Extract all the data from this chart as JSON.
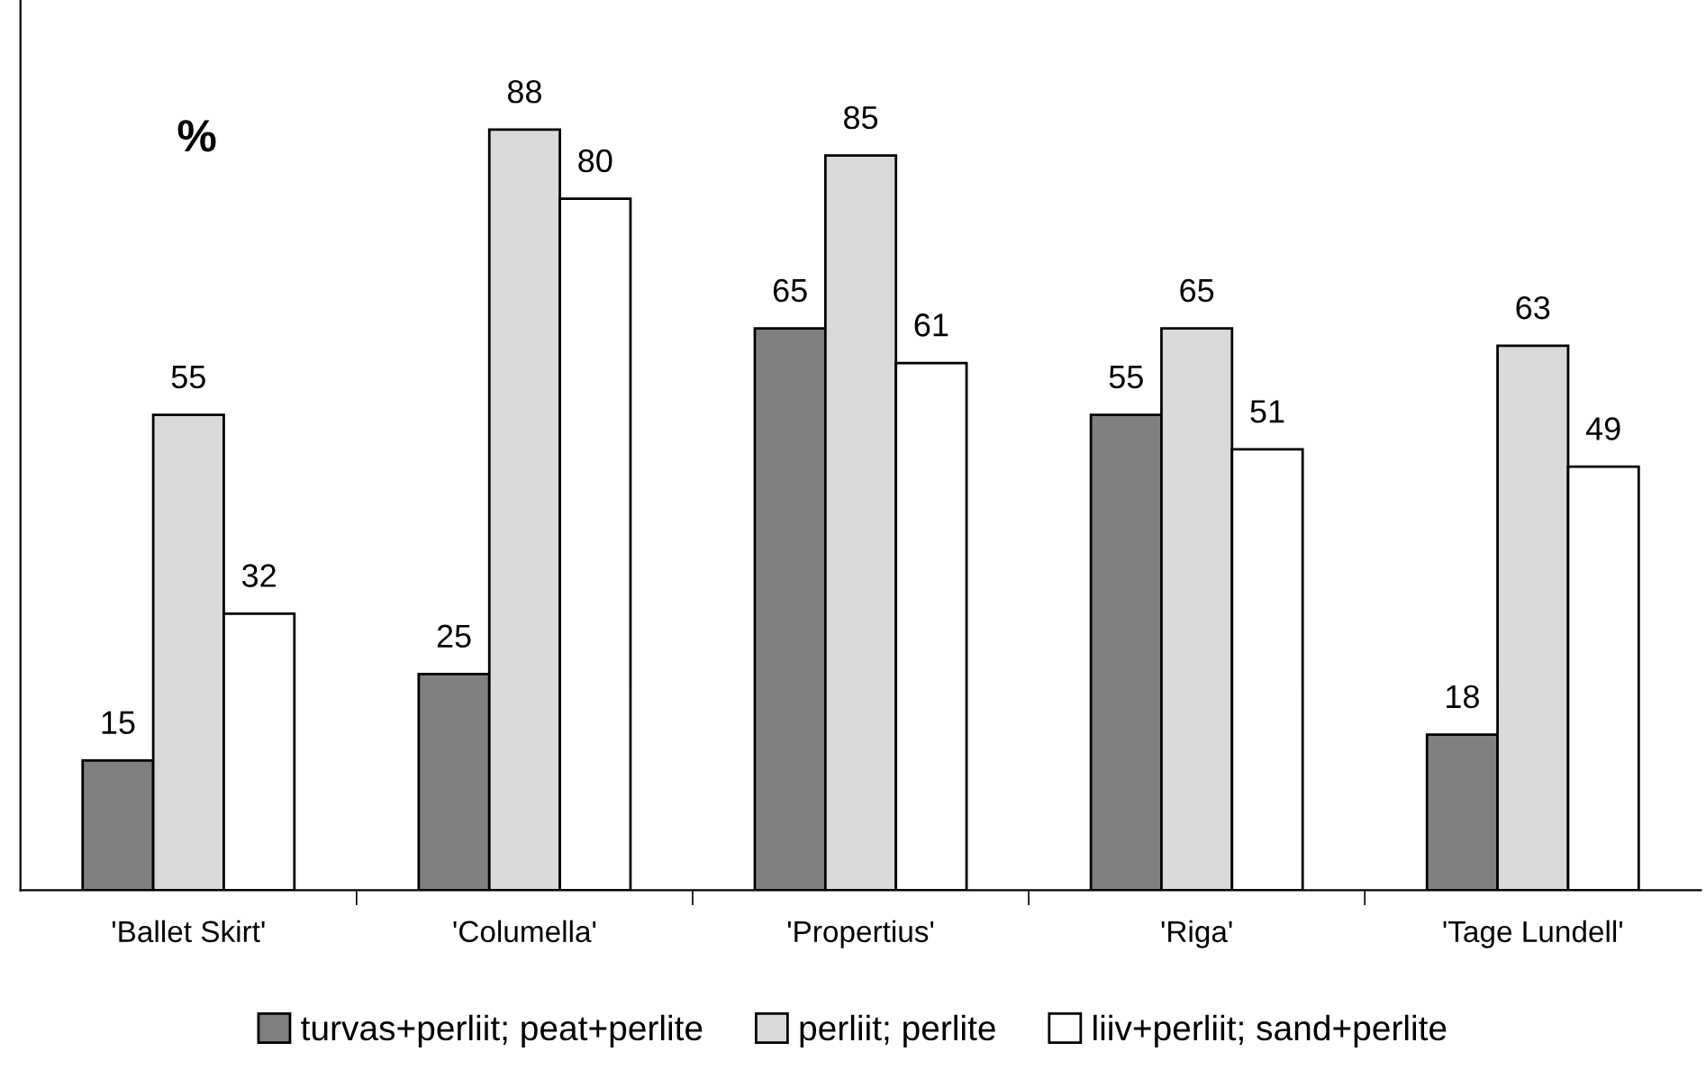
{
  "chart_data": {
    "type": "bar",
    "categories": [
      "'Ballet Skirt'",
      "'Columella'",
      "'Propertius'",
      "'Riga'",
      "'Tage Lundell'"
    ],
    "series": [
      {
        "name": "turvas+perliit; peat+perlite",
        "color": "#808080",
        "values": [
          15,
          25,
          65,
          55,
          18
        ]
      },
      {
        "name": "perliit; perlite",
        "color": "#d9d9d9",
        "values": [
          55,
          88,
          85,
          65,
          63
        ]
      },
      {
        "name": "liiv+perliit; sand+perlite",
        "color": "#ffffff",
        "values": [
          32,
          80,
          61,
          51,
          49
        ]
      }
    ],
    "annotations": [
      "%"
    ],
    "ylim": [
      0,
      103
    ],
    "data_labels": true,
    "grid": false,
    "legend": "bottom",
    "tick_labels": "x"
  }
}
